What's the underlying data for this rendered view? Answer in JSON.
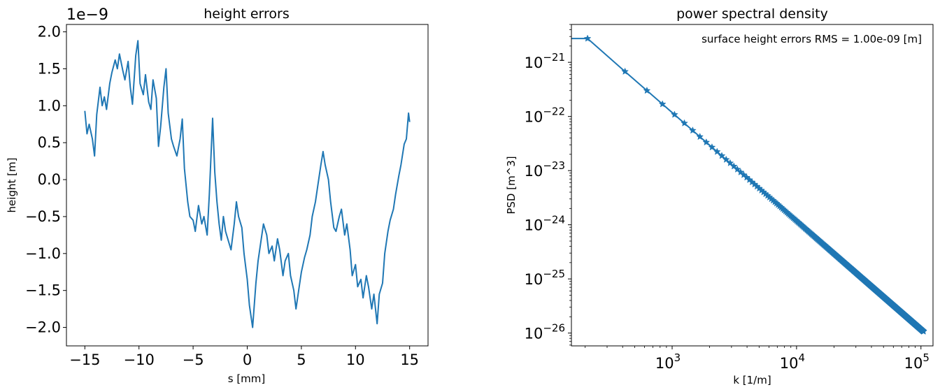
{
  "chart_data": [
    {
      "type": "line",
      "title": "height errors",
      "xlabel": "s [mm]",
      "ylabel": "height [m]",
      "y_offset_label": "1e−9",
      "xlim": [
        -16.7,
        16.7
      ],
      "ylim": [
        -2.25,
        2.1
      ],
      "xticks": [
        -15,
        -10,
        -5,
        0,
        5,
        10,
        15
      ],
      "xtick_labels": [
        "−15",
        "−10",
        "−5",
        "0",
        "5",
        "10",
        "15"
      ],
      "yticks": [
        -2.0,
        -1.5,
        -1.0,
        -0.5,
        0.0,
        0.5,
        1.0,
        1.5,
        2.0
      ],
      "ytick_labels": [
        "−2.0",
        "−1.5",
        "−1.0",
        "−0.5",
        "0.0",
        "0.5",
        "1.0",
        "1.5",
        "2.0"
      ],
      "grid": false,
      "color": "#1f77b4",
      "series": [
        {
          "x": [
            -15.0,
            -14.8,
            -14.6,
            -14.3,
            -14.1,
            -13.9,
            -13.6,
            -13.4,
            -13.2,
            -13.0,
            -12.7,
            -12.5,
            -12.2,
            -12.0,
            -11.8,
            -11.5,
            -11.3,
            -11.0,
            -10.8,
            -10.6,
            -10.3,
            -10.1,
            -9.9,
            -9.6,
            -9.4,
            -9.1,
            -8.9,
            -8.7,
            -8.4,
            -8.2,
            -8.0,
            -7.7,
            -7.5,
            -7.3,
            -7.0,
            -6.8,
            -6.5,
            -6.2,
            -6.0,
            -5.8,
            -5.5,
            -5.3,
            -5.0,
            -4.8,
            -4.5,
            -4.2,
            -4.0,
            -3.7,
            -3.5,
            -3.2,
            -3.0,
            -2.8,
            -2.6,
            -2.4,
            -2.2,
            -2.0,
            -1.7,
            -1.5,
            -1.2,
            -1.0,
            -0.8,
            -0.5,
            -0.3,
            0.0,
            0.2,
            0.5,
            0.8,
            1.0,
            1.3,
            1.5,
            1.8,
            2.0,
            2.3,
            2.5,
            2.8,
            3.0,
            3.3,
            3.5,
            3.8,
            4.0,
            4.3,
            4.5,
            4.8,
            5.0,
            5.3,
            5.5,
            5.8,
            6.0,
            6.3,
            6.5,
            6.8,
            7.0,
            7.2,
            7.5,
            7.7,
            8.0,
            8.2,
            8.5,
            8.7,
            9.0,
            9.2,
            9.5,
            9.7,
            10.0,
            10.2,
            10.5,
            10.7,
            11.0,
            11.2,
            11.5,
            11.7,
            12.0,
            12.2,
            12.5,
            12.7,
            13.0,
            13.2,
            13.5,
            13.7,
            14.0,
            14.2,
            14.5,
            14.7,
            14.9,
            15.0
          ],
          "y": [
            0.93,
            0.62,
            0.75,
            0.55,
            0.32,
            0.88,
            1.25,
            1.0,
            1.12,
            0.95,
            1.3,
            1.45,
            1.62,
            1.5,
            1.7,
            1.48,
            1.35,
            1.6,
            1.25,
            1.02,
            1.68,
            1.88,
            1.3,
            1.15,
            1.42,
            1.05,
            0.95,
            1.35,
            1.1,
            0.45,
            0.72,
            1.25,
            1.5,
            0.9,
            0.55,
            0.45,
            0.32,
            0.55,
            0.82,
            0.15,
            -0.3,
            -0.5,
            -0.55,
            -0.7,
            -0.35,
            -0.6,
            -0.5,
            -0.75,
            -0.2,
            0.83,
            0.1,
            -0.3,
            -0.6,
            -0.82,
            -0.5,
            -0.7,
            -0.85,
            -0.95,
            -0.6,
            -0.3,
            -0.5,
            -0.65,
            -1.0,
            -1.35,
            -1.7,
            -2.0,
            -1.4,
            -1.1,
            -0.8,
            -0.6,
            -0.75,
            -1.0,
            -0.9,
            -1.1,
            -0.8,
            -0.95,
            -1.3,
            -1.1,
            -1.0,
            -1.3,
            -1.5,
            -1.75,
            -1.45,
            -1.25,
            -1.05,
            -0.95,
            -0.75,
            -0.5,
            -0.3,
            -0.1,
            0.2,
            0.38,
            0.2,
            0.0,
            -0.3,
            -0.65,
            -0.7,
            -0.5,
            -0.4,
            -0.75,
            -0.6,
            -0.95,
            -1.3,
            -1.15,
            -1.45,
            -1.35,
            -1.6,
            -1.3,
            -1.45,
            -1.75,
            -1.55,
            -1.95,
            -1.55,
            -1.4,
            -1.0,
            -0.7,
            -0.55,
            -0.4,
            -0.2,
            0.05,
            0.2,
            0.48,
            0.55,
            0.9,
            0.78
          ]
        }
      ]
    },
    {
      "type": "line",
      "title": "power spectral density",
      "xlabel": "k [1/m]",
      "ylabel": "PSD [m^3]",
      "xscale": "log",
      "yscale": "log",
      "xlim": [
        155,
        125000
      ],
      "ylim": [
        5.8e-27,
        5e-21
      ],
      "xticks": [
        1000,
        10000,
        100000
      ],
      "xtick_labels": [
        {
          "base": "10",
          "exp": "3"
        },
        {
          "base": "10",
          "exp": "4"
        },
        {
          "base": "10",
          "exp": "5"
        }
      ],
      "yticks": [
        1e-26,
        1e-25,
        1e-24,
        1e-23,
        1e-22,
        1e-21
      ],
      "ytick_labels": [
        {
          "base": "10",
          "exp": "−26"
        },
        {
          "base": "10",
          "exp": "−25"
        },
        {
          "base": "10",
          "exp": "−24"
        },
        {
          "base": "10",
          "exp": "−23"
        },
        {
          "base": "10",
          "exp": "−22"
        },
        {
          "base": "10",
          "exp": "−21"
        }
      ],
      "annotation": "surface height errors RMS = 1.00e-09 [m]",
      "annotation_position": "top-right",
      "marker": "star",
      "grid": false,
      "color": "#1f77b4",
      "series": [
        {
          "k_start": 209,
          "k_step": 209,
          "k_end": 105000,
          "plateau_psd": 2.75e-21,
          "slope": -2,
          "psd_at_1000": 1.18e-22,
          "x": [
            209,
            418,
            627,
            836,
            1045,
            1254,
            1463,
            1672,
            1881,
            2090,
            105000
          ],
          "y": [
            2.75e-21,
            6.8e-22,
            3e-22,
            1.7e-22,
            1.08e-22,
            7.5e-23,
            5.5e-23,
            4.2e-23,
            3.35e-23,
            2.7e-23,
            1.1e-26
          ]
        }
      ]
    }
  ]
}
